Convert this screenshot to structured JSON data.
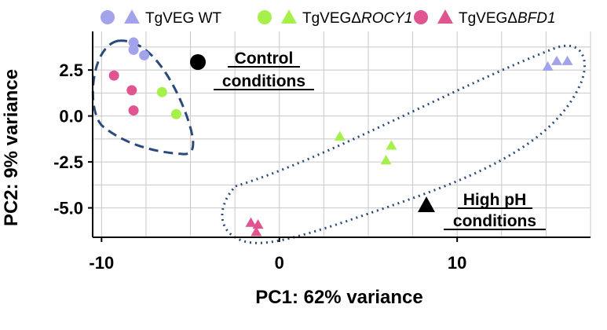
{
  "chart_data": {
    "type": "scatter",
    "title": "",
    "xlabel": "PC1: 62% variance",
    "ylabel": "PC2: 9% variance",
    "xlim": [
      -10.5,
      17.5
    ],
    "ylim": [
      -6.6,
      4.6
    ],
    "xticks": [
      -10,
      0,
      10
    ],
    "xtick_labels": [
      "-10",
      "0",
      "10"
    ],
    "yticks": [
      2.5,
      0.0,
      -2.5,
      -5.0
    ],
    "ytick_labels": [
      "2.5",
      "0.0",
      "-2.5",
      "-5.0"
    ],
    "grid": true,
    "legend": {
      "position": "top",
      "entries": [
        {
          "prefix": "TgVEG",
          "italic": "",
          "suffix": " WT",
          "color": "#a3a3ec"
        },
        {
          "prefix": "TgVEGΔ",
          "italic": "ROCY1",
          "suffix": "",
          "color": "#a6f04b"
        },
        {
          "prefix": "TgVEGΔ",
          "italic": "BFD1",
          "suffix": "",
          "color": "#e0558f"
        }
      ]
    },
    "marker_key": {
      "control": {
        "shape": "circle",
        "label_line1": "Control",
        "label_line2": "conditions"
      },
      "high_ph": {
        "shape": "triangle",
        "label_line1": "High pH",
        "label_line2": "conditions"
      }
    },
    "series": [
      {
        "name": "TgVEG WT - control",
        "color": "#a3a3ec",
        "shape": "circle",
        "points": [
          [
            -8.2,
            4.0
          ],
          [
            -8.2,
            3.6
          ],
          [
            -7.6,
            3.3
          ]
        ]
      },
      {
        "name": "TgVEG WT - high pH",
        "color": "#a3a3ec",
        "shape": "triangle",
        "points": [
          [
            15.1,
            2.7
          ],
          [
            15.6,
            3.0
          ],
          [
            16.2,
            3.0
          ]
        ]
      },
      {
        "name": "TgVEGΔROCY1 - control",
        "color": "#a6f04b",
        "shape": "circle",
        "points": [
          [
            -6.6,
            1.3
          ],
          [
            -5.8,
            0.1
          ]
        ]
      },
      {
        "name": "TgVEGΔROCY1 - high pH",
        "color": "#a6f04b",
        "shape": "triangle",
        "points": [
          [
            3.4,
            -1.1
          ],
          [
            6.3,
            -1.6
          ],
          [
            6.0,
            -2.4
          ]
        ]
      },
      {
        "name": "TgVEGΔBFD1 - control",
        "color": "#e0558f",
        "shape": "circle",
        "points": [
          [
            -9.3,
            2.2
          ],
          [
            -8.3,
            1.4
          ],
          [
            -8.2,
            0.3
          ]
        ]
      },
      {
        "name": "TgVEGΔBFD1 - high pH",
        "color": "#e0558f",
        "shape": "triangle",
        "points": [
          [
            -1.6,
            -5.8
          ],
          [
            -1.2,
            -5.9
          ],
          [
            -1.3,
            -6.3
          ]
        ]
      }
    ]
  }
}
